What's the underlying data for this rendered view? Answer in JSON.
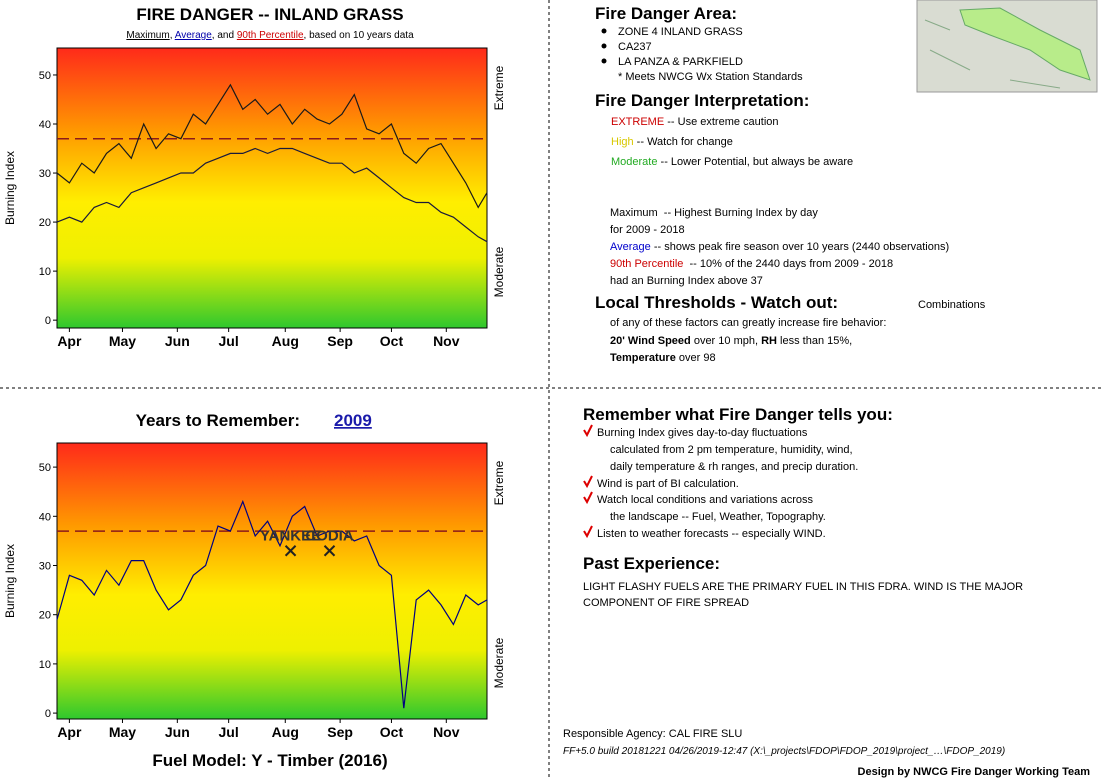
{
  "chart_data": [
    {
      "type": "line",
      "title": "FIRE DANGER -- INLAND GRASS",
      "subtitle": [
        "Maximum",
        ", ",
        "Average",
        ", and ",
        "90th Percentile",
        ", based on 10 years data"
      ],
      "ylabel": "Burning Index",
      "right_labels": [
        "Extreme",
        "Moderate"
      ],
      "xlim": [
        0,
        243
      ],
      "xticks": [
        {
          "value": 7,
          "label": "Apr"
        },
        {
          "value": 37,
          "label": "May"
        },
        {
          "value": 68,
          "label": "Jun"
        },
        {
          "value": 97,
          "label": "Jul"
        },
        {
          "value": 129,
          "label": "Aug"
        },
        {
          "value": 160,
          "label": "Sep"
        },
        {
          "value": 189,
          "label": "Oct"
        },
        {
          "value": 220,
          "label": "Nov"
        }
      ],
      "ylim": [
        -1.6,
        55.5
      ],
      "yticks": [
        0,
        10,
        20,
        30,
        40,
        50
      ],
      "x": [
        0,
        7,
        14,
        21,
        28,
        35,
        42,
        49,
        56,
        63,
        70,
        77,
        84,
        91,
        98,
        105,
        112,
        119,
        126,
        133,
        140,
        147,
        154,
        161,
        168,
        175,
        182,
        189,
        196,
        203,
        210,
        217,
        224,
        231,
        238,
        243
      ],
      "series": [
        {
          "name": "Maximum",
          "color": "#1a1a1a",
          "values": [
            30,
            28,
            32,
            30,
            34,
            36,
            33,
            40,
            35,
            38,
            37,
            42,
            40,
            44,
            48,
            43,
            45,
            42,
            44,
            40,
            43,
            41,
            40,
            42,
            46,
            39,
            38,
            40,
            34,
            32,
            35,
            36,
            32,
            28,
            23,
            26
          ]
        },
        {
          "name": "Average",
          "color": "#1a1a3a",
          "values": [
            20,
            21,
            20,
            23,
            24,
            23,
            26,
            27,
            28,
            29,
            30,
            30,
            32,
            33,
            34,
            34,
            35,
            34,
            35,
            35,
            34,
            33,
            32,
            32,
            30,
            31,
            29,
            27,
            25,
            24,
            24,
            22,
            21,
            19,
            17,
            16
          ]
        }
      ],
      "threshold": {
        "name": "90th Percentile",
        "value": 37,
        "color": "#8b1a1a"
      }
    },
    {
      "type": "line",
      "title": "Years to Remember:",
      "year": "2009",
      "footer": "Fuel Model: Y - Timber (2016)",
      "ylabel": "Burning Index",
      "right_labels": [
        "Extreme",
        "Moderate"
      ],
      "xlim": [
        0,
        243
      ],
      "xticks": [
        {
          "value": 7,
          "label": "Apr"
        },
        {
          "value": 37,
          "label": "May"
        },
        {
          "value": 68,
          "label": "Jun"
        },
        {
          "value": 97,
          "label": "Jul"
        },
        {
          "value": 129,
          "label": "Aug"
        },
        {
          "value": 160,
          "label": "Sep"
        },
        {
          "value": 189,
          "label": "Oct"
        },
        {
          "value": 220,
          "label": "Nov"
        }
      ],
      "ylim": [
        -1.2,
        54.9
      ],
      "yticks": [
        0,
        10,
        20,
        30,
        40,
        50
      ],
      "x": [
        0,
        7,
        14,
        21,
        28,
        35,
        42,
        49,
        56,
        63,
        70,
        77,
        84,
        91,
        98,
        105,
        112,
        119,
        126,
        133,
        140,
        147,
        154,
        161,
        168,
        175,
        182,
        189,
        196,
        203,
        210,
        217,
        224,
        231,
        238,
        243
      ],
      "series": [
        {
          "color": "#000080",
          "values": [
            19,
            28,
            27,
            24,
            29,
            26,
            31,
            31,
            25,
            21,
            23,
            28,
            30,
            38,
            37,
            43,
            36,
            39,
            34,
            40,
            42,
            36,
            37,
            37,
            35,
            36,
            30,
            28,
            1,
            23,
            25,
            22,
            18,
            24,
            22,
            23
          ]
        }
      ],
      "threshold": {
        "value": 37,
        "color": "#8b1a1a"
      },
      "annotations": [
        {
          "text": "YANKEE",
          "x": 132,
          "y": 33
        },
        {
          "text": "CODIA",
          "x": 154,
          "y": 33
        }
      ]
    }
  ],
  "area": {
    "title": "Fire Danger Area:",
    "items": [
      "ZONE 4 INLAND GRASS",
      "CA237",
      "LA PANZA & PARKFIELD"
    ],
    "note": "* Meets NWCG Wx Station Standards"
  },
  "interpretation": {
    "title": "Fire Danger Interpretation:",
    "levels": [
      [
        "EXTREME",
        " -- Use extreme caution"
      ],
      [
        "High",
        " -- Watch for change"
      ],
      [
        "Moderate",
        " -- Lower Potential, but always be aware"
      ]
    ],
    "lines": [
      "Maximum  -- Highest Burning Index by day",
      "for 2009 - 2018"
    ],
    "average": [
      "Average",
      " -- shows peak fire season over 10 years (2440 observations)"
    ],
    "percentile": [
      "90th Percentile",
      "  -- 10% of the 2440 days from 2009 - 2018"
    ],
    "last": "had an Burning Index above 37"
  },
  "thresholds": {
    "title": "Local Thresholds - Watch out:",
    "lead": "Combinations",
    "line1": "of any of these factors can greatly increase fire behavior:",
    "line2": [
      "20' Wind Speed",
      " over 10 mph, ",
      "RH",
      " less than 15%,"
    ],
    "line3": [
      "Temperature",
      " over 98"
    ]
  },
  "remember": {
    "title": "Remember what Fire Danger tells you:",
    "lines": [
      "Burning Index gives day-to-day fluctuations",
      "calculated from 2 pm temperature, humidity, wind,",
      "daily temperature & rh ranges, and precip duration.",
      "Wind is part of BI calculation.",
      "Watch local conditions and variations across",
      "the landscape -- Fuel, Weather, Topography.",
      "Listen to weather forecasts -- especially WIND."
    ]
  },
  "experience": {
    "title": "Past Experience:",
    "lines": [
      "LIGHT FLASHY FUELS ARE THE PRIMARY FUEL IN THIS FDRA. WIND IS THE MAJOR",
      "COMPONENT OF FIRE SPREAD"
    ]
  },
  "footer": {
    "agency": "Responsible Agency: CAL FIRE SLU",
    "build": "FF+5.0 build 20181221 04/26/2019-12:47 (X:\\_projects\\FDOP\\FDOP_2019\\project_…\\FDOP_2019)",
    "design": "Design by NWCG Fire Danger Working Team"
  }
}
